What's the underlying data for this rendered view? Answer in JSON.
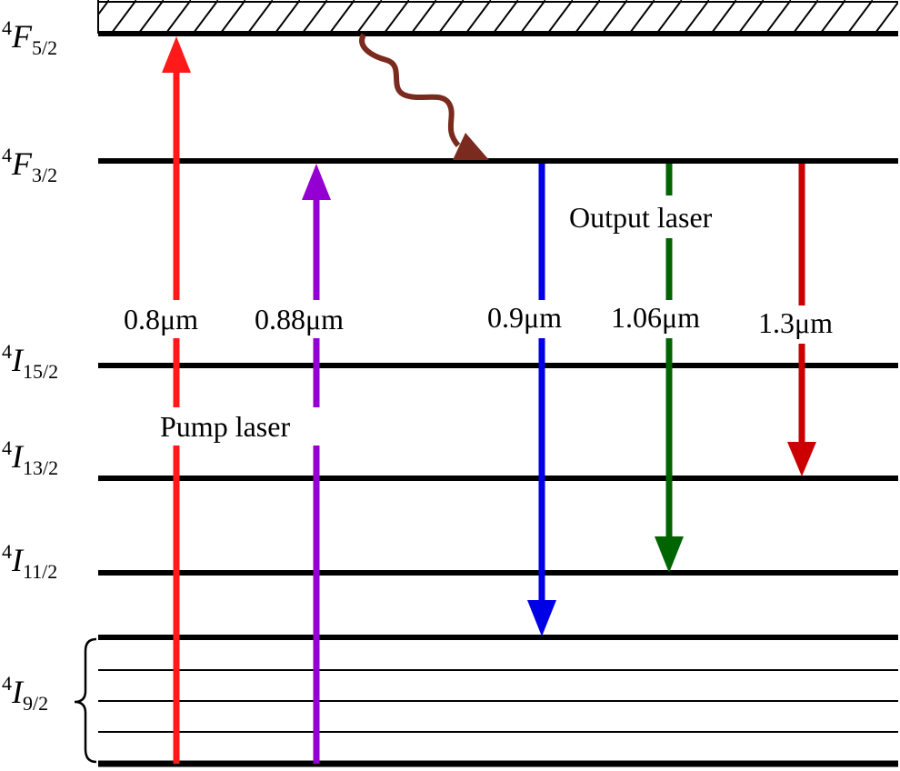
{
  "levels": [
    {
      "id": "4F5_2",
      "sup": "4",
      "main": "F",
      "sub": "5/2"
    },
    {
      "id": "4F3_2",
      "sup": "4",
      "main": "F",
      "sub": "3/2"
    },
    {
      "id": "4I15_2",
      "sup": "4",
      "main": "I",
      "sub": "15/2"
    },
    {
      "id": "4I13_2",
      "sup": "4",
      "main": "I",
      "sub": "13/2"
    },
    {
      "id": "4I11_2",
      "sup": "4",
      "main": "I",
      "sub": "11/2"
    },
    {
      "id": "4I9_2",
      "sup": "4",
      "main": "I",
      "sub": "9/2"
    }
  ],
  "transitions": {
    "pump_08": {
      "label": "0.8μm",
      "color": "#ff1a1a"
    },
    "pump_088": {
      "label": "0.88μm",
      "color": "#9400d3"
    },
    "out_09": {
      "label": "0.9μm",
      "color": "#0000e6"
    },
    "out_106": {
      "label": "1.06μm",
      "color": "#006400"
    },
    "out_13": {
      "label": "1.3μm",
      "color": "#cc0000"
    },
    "relax": {
      "color": "#7a2a1e"
    }
  },
  "labels": {
    "pump": "Pump laser",
    "output": "Output laser"
  }
}
